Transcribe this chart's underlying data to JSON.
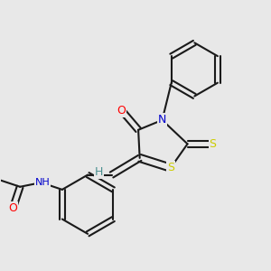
{
  "bg_color": "#e8e8e8",
  "bond_color": "#1a1a1a",
  "atom_colors": {
    "O": "#ff0000",
    "N": "#0000cc",
    "S": "#cccc00",
    "H": "#4a9090"
  }
}
